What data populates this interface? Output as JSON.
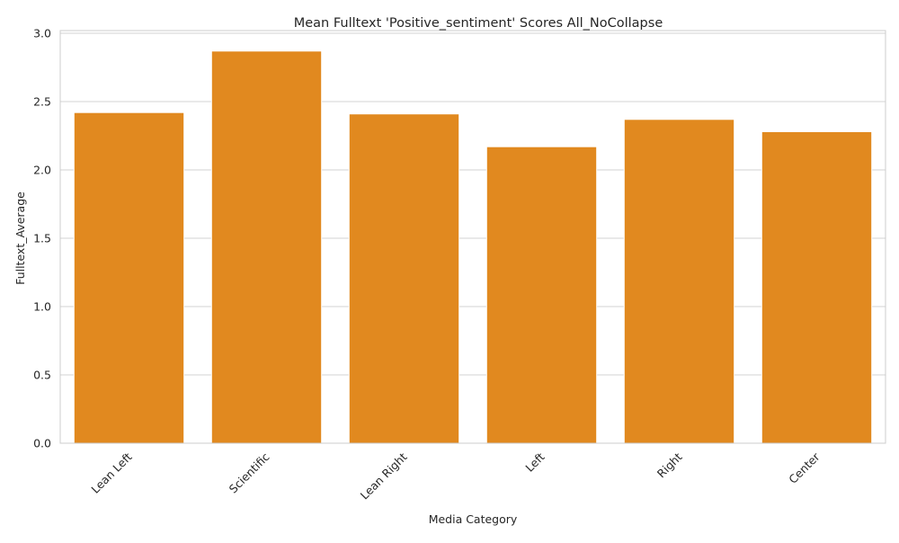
{
  "chart_data": {
    "type": "bar",
    "title": "Mean Fulltext 'Positive_sentiment' Scores All_NoCollapse",
    "xlabel": "Media Category",
    "ylabel": "Fulltext_Average",
    "categories": [
      "Lean Left",
      "Scientific",
      "Lean Right",
      "Left",
      "Right",
      "Center"
    ],
    "values": [
      2.42,
      2.87,
      2.41,
      2.17,
      2.37,
      2.28
    ],
    "ylim": [
      0,
      3.02
    ],
    "yticks": [
      "0.0",
      "0.5",
      "1.0",
      "1.5",
      "2.0",
      "2.5",
      "3.0"
    ],
    "grid": "horizontal",
    "colors": {
      "bar": "#e1891f"
    }
  }
}
